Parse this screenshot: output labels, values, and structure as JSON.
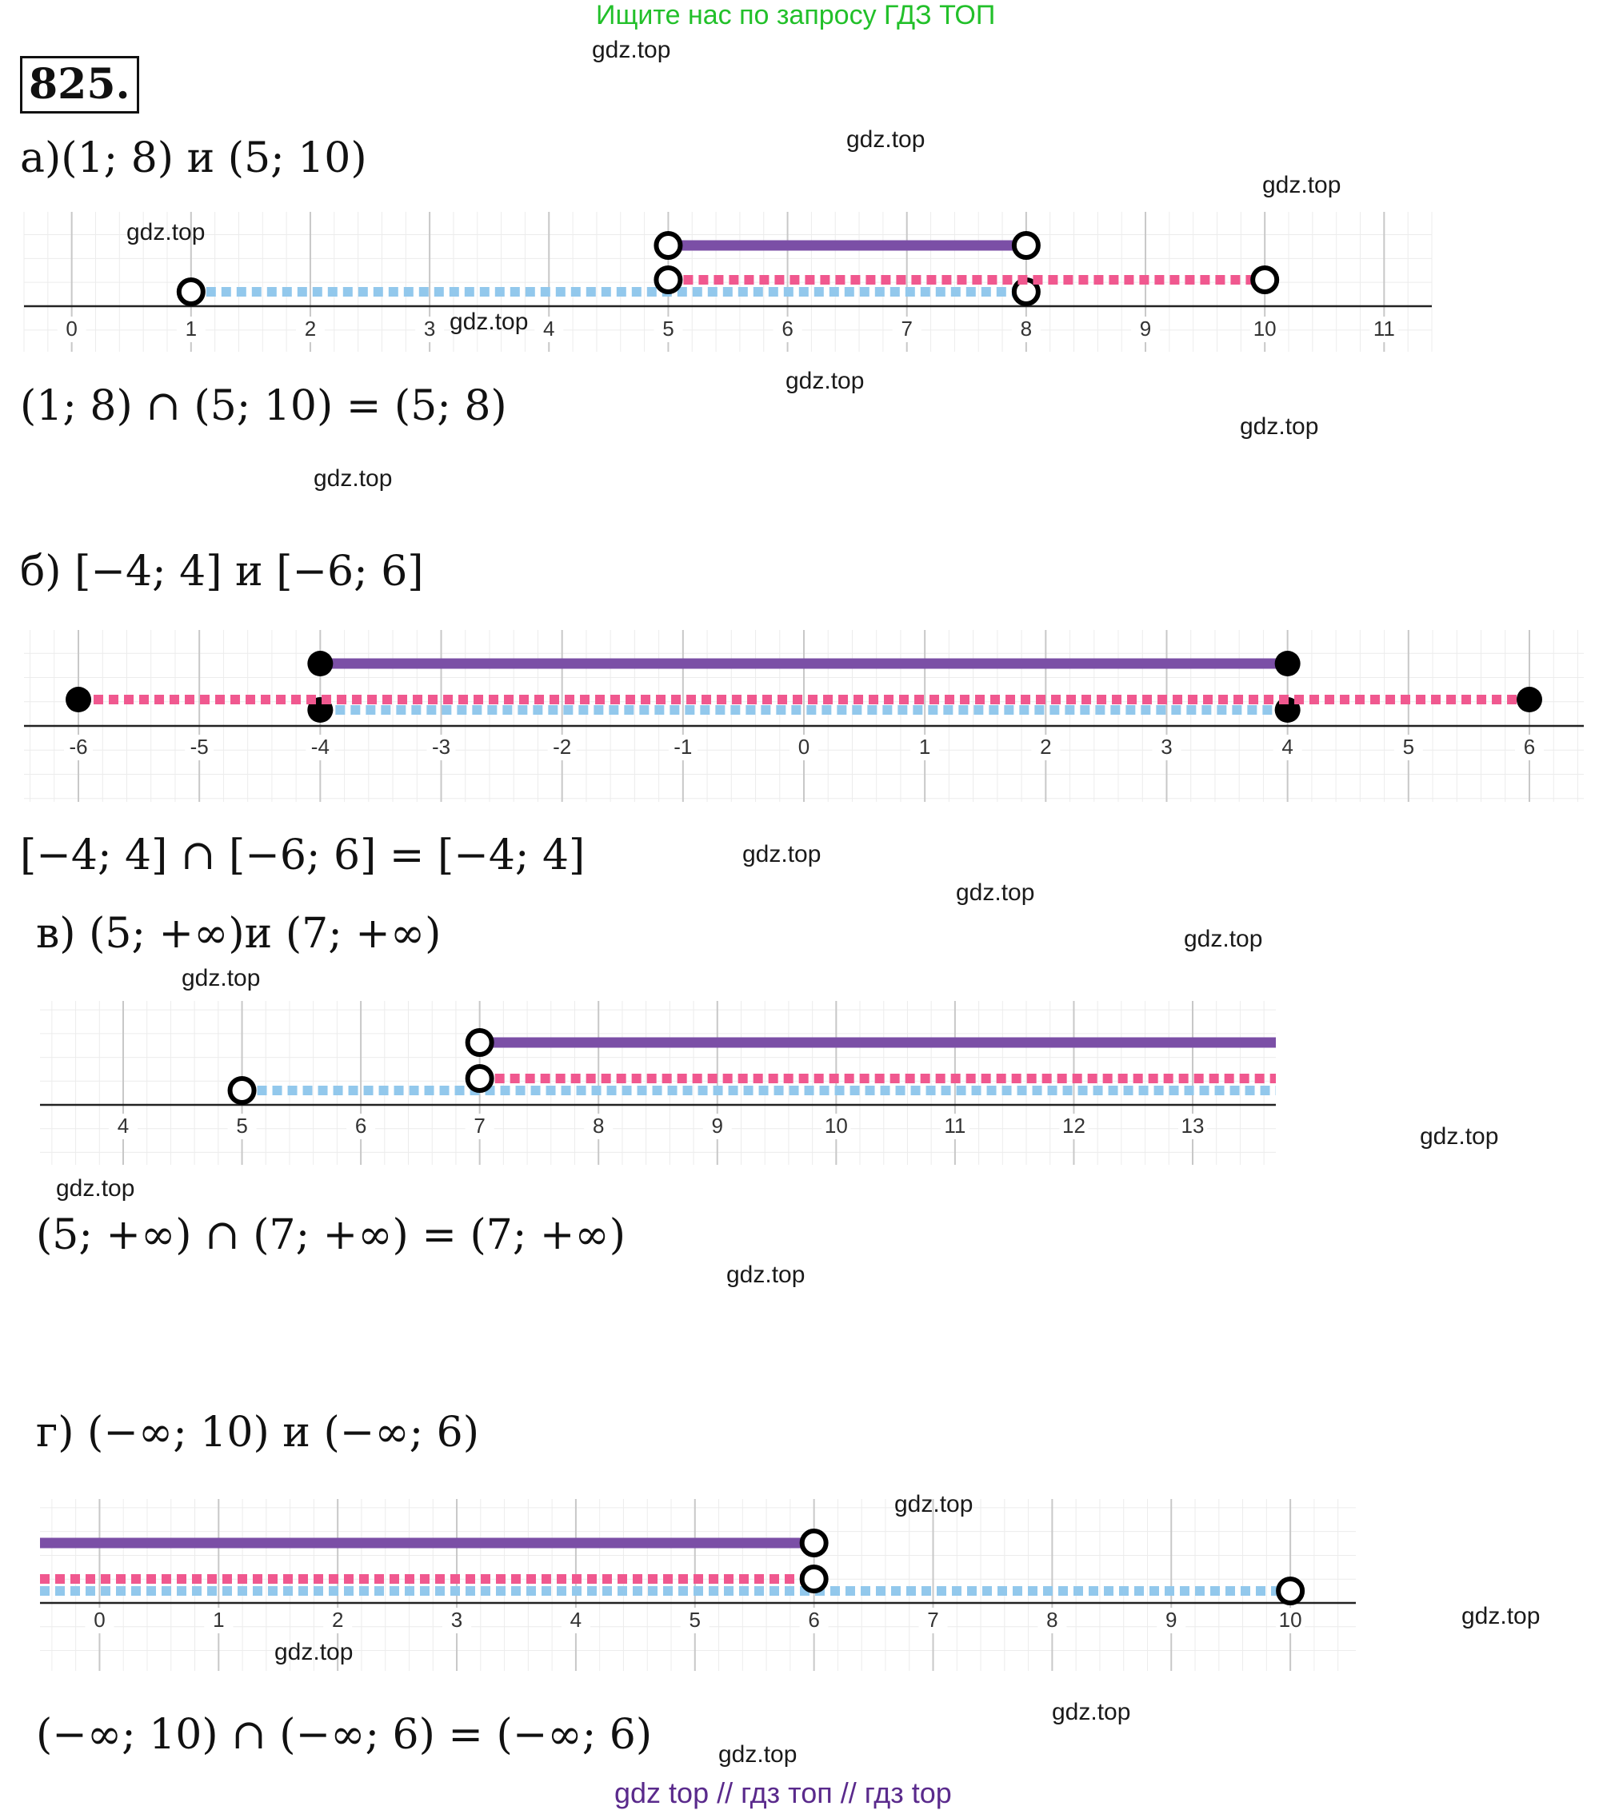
{
  "header": {
    "banner": "Ищите нас по запросу ГДЗ ТОП",
    "problem_number": "825."
  },
  "watermark": "gdz.top",
  "footer": "gdz top  //  гдз топ  //  гдз top",
  "colors": {
    "purple": "#7b4fa6",
    "pink": "#f0588f",
    "blue": "#92c8ec"
  },
  "parts": [
    {
      "label": "а)(1; 8) и (5; 10)",
      "result": "(1; 8)  ∩  (5; 10) = (5; 8)",
      "axis": {
        "min": -0.4,
        "max": 11.4,
        "ticks": [
          "0",
          "1",
          "2",
          "3",
          "4",
          "5",
          "6",
          "7",
          "8",
          "9",
          "10",
          "11"
        ],
        "tick_values": [
          0,
          1,
          2,
          3,
          4,
          5,
          6,
          7,
          8,
          9,
          10,
          11
        ]
      },
      "intervals": [
        {
          "name": "intersection",
          "color": "purple",
          "style": "solid",
          "from": 5,
          "to": 8,
          "from_closed": false,
          "to_closed": false
        },
        {
          "name": "second",
          "color": "pink",
          "style": "dashed",
          "from": 5,
          "to": 10,
          "from_closed": false,
          "to_closed": false
        },
        {
          "name": "first",
          "color": "blue",
          "style": "dashed",
          "from": 1,
          "to": 8,
          "from_closed": false,
          "to_closed": false
        }
      ]
    },
    {
      "label": "б) [−4; 4] и [−6; 6]",
      "result": "[−4; 4]  ∩  [−6; 6] = [−4; 4]",
      "axis": {
        "min": -6.45,
        "max": 6.45,
        "ticks": [
          "-6",
          "-5",
          "-4",
          "-3",
          "-2",
          "-1",
          "0",
          "1",
          "2",
          "3",
          "4",
          "5",
          "6"
        ],
        "tick_values": [
          -6,
          -5,
          -4,
          -3,
          -2,
          -1,
          0,
          1,
          2,
          3,
          4,
          5,
          6
        ]
      },
      "intervals": [
        {
          "name": "intersection",
          "color": "purple",
          "style": "solid",
          "from": -4,
          "to": 4,
          "from_closed": true,
          "to_closed": true
        },
        {
          "name": "second",
          "color": "pink",
          "style": "dashed",
          "from": -6,
          "to": 6,
          "from_closed": true,
          "to_closed": true
        },
        {
          "name": "first",
          "color": "blue",
          "style": "dashed",
          "from": -4,
          "to": 4,
          "from_closed": true,
          "to_closed": true
        }
      ]
    },
    {
      "label": "в)  (5; +∞)и (7; +∞)",
      "result": "(5; +∞) ∩  (7; +∞)  =  (7; +∞)",
      "axis": {
        "min": 3.3,
        "max": 13.7,
        "ticks": [
          "4",
          "5",
          "6",
          "7",
          "8",
          "9",
          "10",
          "11",
          "12",
          "13"
        ],
        "tick_values": [
          4,
          5,
          6,
          7,
          8,
          9,
          10,
          11,
          12,
          13
        ]
      },
      "intervals": [
        {
          "name": "intersection",
          "color": "purple",
          "style": "solid",
          "from": 7,
          "to": "inf",
          "from_closed": false
        },
        {
          "name": "second",
          "color": "pink",
          "style": "dashed",
          "from": 7,
          "to": "inf",
          "from_closed": false
        },
        {
          "name": "first",
          "color": "blue",
          "style": "dashed",
          "from": 5,
          "to": "inf",
          "from_closed": false
        }
      ]
    },
    {
      "label": "г) (−∞; 10) и (−∞; 6)",
      "result": "(−∞; 10)  ∩  (−∞; 6) = (−∞; 6)",
      "axis": {
        "min": -0.5,
        "max": 10.55,
        "ticks": [
          "0",
          "1",
          "2",
          "3",
          "4",
          "5",
          "6",
          "7",
          "8",
          "9",
          "10"
        ],
        "tick_values": [
          0,
          1,
          2,
          3,
          4,
          5,
          6,
          7,
          8,
          9,
          10
        ]
      },
      "intervals": [
        {
          "name": "intersection",
          "color": "purple",
          "style": "solid",
          "from": "-inf",
          "to": 6,
          "to_closed": false
        },
        {
          "name": "second",
          "color": "pink",
          "style": "dashed",
          "from": "-inf",
          "to": 6,
          "to_closed": false
        },
        {
          "name": "first",
          "color": "blue",
          "style": "dashed",
          "from": "-inf",
          "to": 10,
          "to_closed": false
        }
      ]
    }
  ]
}
